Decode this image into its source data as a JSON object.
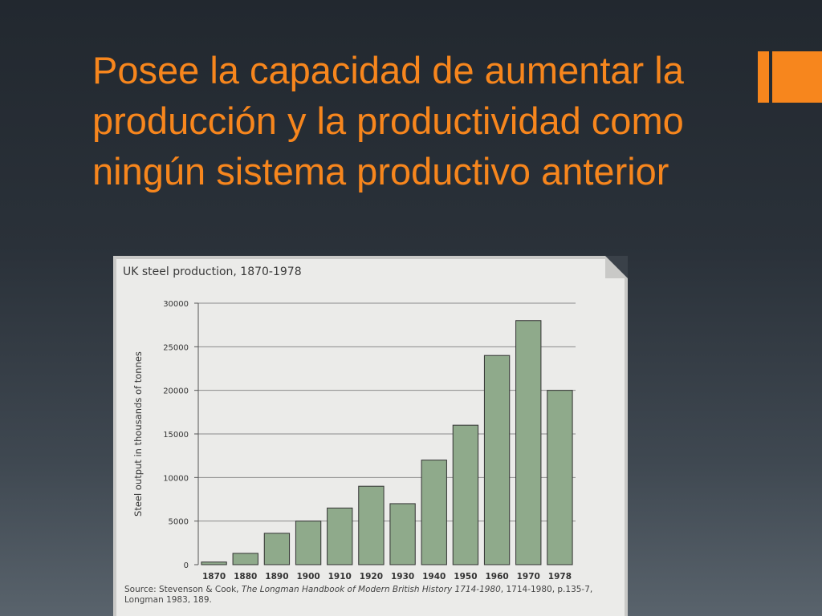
{
  "slide": {
    "title": "Posee la capacidad de aumentar la producción y la productividad como ningún sistema productivo anterior"
  },
  "colors": {
    "title": "#f7861d",
    "background_top": "#22282f",
    "background_bottom": "#59636c",
    "bar_fill": "#8faa8b",
    "bar_stroke": "#333333",
    "panel": "#ebebe9"
  },
  "chart_data": {
    "type": "bar",
    "title": "UK steel production, 1870-1978",
    "xlabel": "",
    "ylabel": "Steel output in thousands of tonnes",
    "categories": [
      "1870",
      "1880",
      "1890",
      "1900",
      "1910",
      "1920",
      "1930",
      "1940",
      "1950",
      "1960",
      "1970",
      "1978"
    ],
    "values": [
      300,
      1300,
      3600,
      5000,
      6500,
      9000,
      7000,
      12000,
      16000,
      24000,
      28000,
      20000
    ],
    "ylim": [
      0,
      30000
    ],
    "yticks": [
      "0",
      "5000",
      "10000",
      "15000",
      "20000",
      "25000",
      "30000"
    ],
    "grid": true,
    "legend": "none",
    "source": {
      "prefix": "Source: Stevenson & Cook, ",
      "title": "The Longman Handbook of Modern British History 1714-1980",
      "suffix": ", 1714-1980, p.135-7, Longman 1983, 189."
    }
  }
}
